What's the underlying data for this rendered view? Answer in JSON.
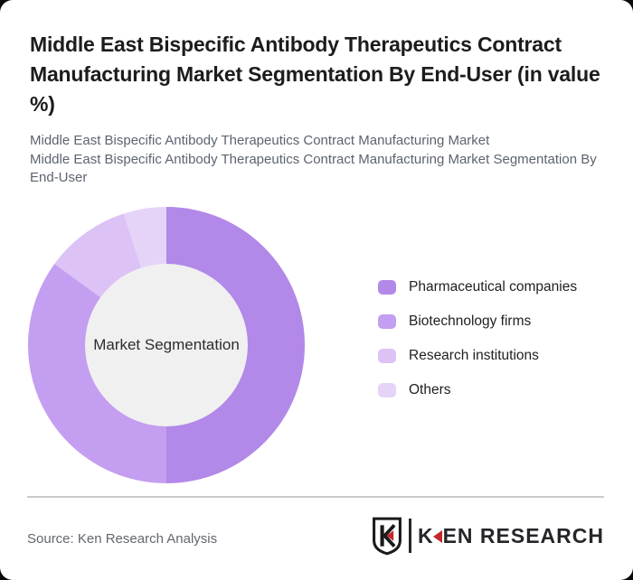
{
  "page": {
    "title": "Middle East Bispecific Antibody Therapeutics Contract Manufacturing Market Segmentation By End-User (in value %)",
    "subtitle_lines": [
      "Middle East Bispecific Antibody Therapeutics Contract Manufacturing Market",
      "Middle East Bispecific Antibody Therapeutics Contract Manufacturing Market Segmentation By End-User"
    ]
  },
  "chart_data": {
    "type": "pie",
    "subtype": "donut",
    "title": "Middle East Bispecific Antibody Therapeutics Contract Manufacturing Market Segmentation By End-User (in value %)",
    "center_label": "Market Segmentation",
    "categories": [
      "Pharmaceutical companies",
      "Biotechnology firms",
      "Research institutions",
      "Others"
    ],
    "values": [
      50,
      35,
      10,
      5
    ],
    "unit": "value %",
    "colors": [
      "#b288e8",
      "#c49ef0",
      "#dcc2f5",
      "#e6d4f8"
    ],
    "inner_circle_color": "#f0f0f1",
    "start_angle_deg": 0,
    "direction": "clockwise",
    "legend_position": "right"
  },
  "legend": {
    "items": [
      {
        "label": "Pharmaceutical companies",
        "color": "#b288e8"
      },
      {
        "label": "Biotechnology firms",
        "color": "#c49ef0"
      },
      {
        "label": "Research institutions",
        "color": "#dcc2f5"
      },
      {
        "label": "Others",
        "color": "#e6d4f8"
      }
    ]
  },
  "footer": {
    "source_text": "Source: Ken Research Analysis",
    "logo": {
      "brand_k": "K",
      "brand_rest": "EN RESEARCH",
      "shield_letter": "K",
      "accent_color": "#c3272b",
      "text_color": "#26262a"
    }
  },
  "theme": {
    "page_bg": "#0a0a0a",
    "card_bg": "#ffffff",
    "title_color": "#1c1c1e",
    "subtitle_color": "#5c6370",
    "legend_text_color": "#1f1f1f",
    "divider_color": "#cbcbcb",
    "source_color": "#63676e",
    "center_text_color": "#2d2d2d"
  }
}
